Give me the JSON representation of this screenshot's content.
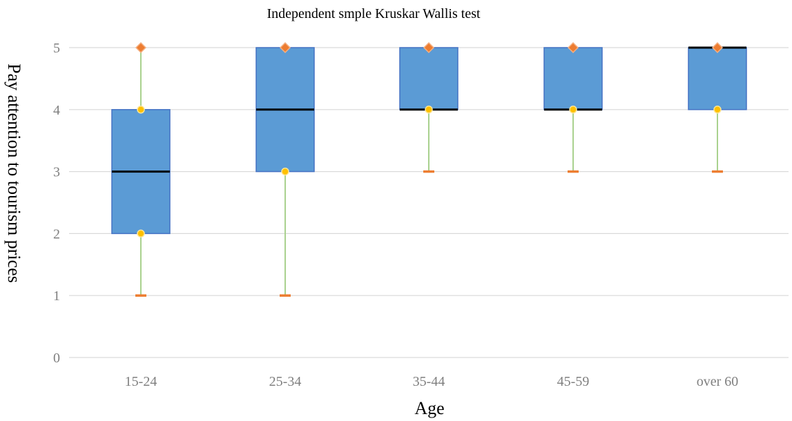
{
  "chart_data": {
    "type": "box",
    "title": "Independent smple Kruskar Wallis test",
    "xlabel": "Age",
    "ylabel": "Pay attention to tourism prices",
    "ylim": [
      0,
      5
    ],
    "yticks": [
      0,
      1,
      2,
      3,
      4,
      5
    ],
    "grid": true,
    "categories": [
      "15-24",
      "25-34",
      "35-44",
      "45-59",
      "over 60"
    ],
    "boxes": [
      {
        "category": "15-24",
        "min": 1,
        "q1": 2,
        "median": 3,
        "q3": 4,
        "max": 5
      },
      {
        "category": "25-34",
        "min": 1,
        "q1": 3,
        "median": 4,
        "q3": 5,
        "max": 5
      },
      {
        "category": "35-44",
        "min": 3,
        "q1": 4,
        "median": 4,
        "q3": 5,
        "max": 5
      },
      {
        "category": "45-59",
        "min": 3,
        "q1": 4,
        "median": 4,
        "q3": 5,
        "max": 5
      },
      {
        "category": "over 60",
        "min": 3,
        "q1": 4,
        "median": 5,
        "q3": 5,
        "max": 5
      }
    ],
    "colors": {
      "box_fill": "#5b9bd5",
      "box_stroke": "#4472c4",
      "median": "#000000",
      "whisker": "#a9d18e",
      "min_cap": "#ed7d31",
      "max_marker": "#ed7d31",
      "quartile_marker": "#ffc000",
      "grid": "#d9d9d9"
    }
  }
}
